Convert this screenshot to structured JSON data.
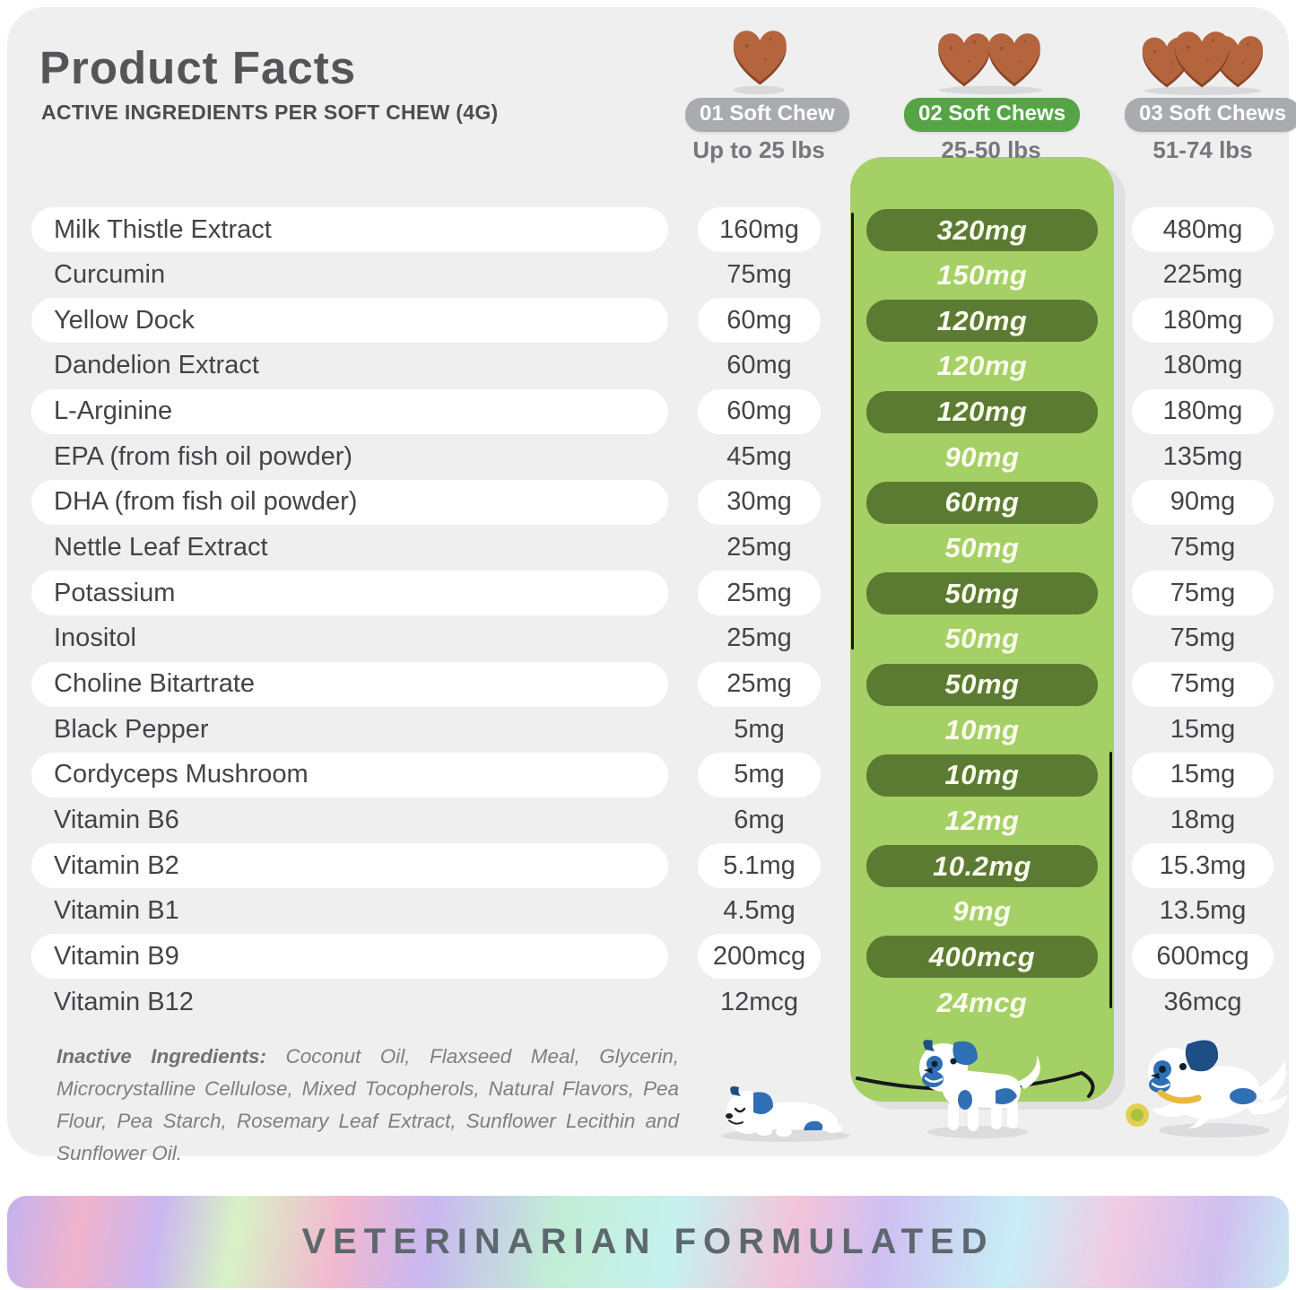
{
  "header": {
    "title": "Product Facts",
    "subtitle": "ACTIVE INGREDIENTS PER SOFT CHEW (4G)"
  },
  "dose_columns": [
    {
      "badge": "01 Soft Chew",
      "weight": "Up to 25 lbs",
      "chews": 1,
      "highlighted": false
    },
    {
      "badge": "02 Soft Chews",
      "weight": "25-50 lbs",
      "chews": 2,
      "highlighted": true
    },
    {
      "badge": "03 Soft Chews",
      "weight": "51-74 lbs",
      "chews": 3,
      "highlighted": false
    }
  ],
  "ingredients": [
    {
      "name": "Milk Thistle Extract",
      "dose1": "160mg",
      "dose2": "320mg",
      "dose3": "480mg"
    },
    {
      "name": "Curcumin",
      "dose1": "75mg",
      "dose2": "150mg",
      "dose3": "225mg"
    },
    {
      "name": "Yellow Dock",
      "dose1": "60mg",
      "dose2": "120mg",
      "dose3": "180mg"
    },
    {
      "name": "Dandelion Extract",
      "dose1": "60mg",
      "dose2": "120mg",
      "dose3": "180mg"
    },
    {
      "name": "L-Arginine",
      "dose1": "60mg",
      "dose2": "120mg",
      "dose3": "180mg"
    },
    {
      "name": "EPA (from fish oil powder)",
      "dose1": "45mg",
      "dose2": "90mg",
      "dose3": "135mg"
    },
    {
      "name": "DHA (from fish oil powder)",
      "dose1": "30mg",
      "dose2": "60mg",
      "dose3": "90mg"
    },
    {
      "name": "Nettle Leaf Extract",
      "dose1": "25mg",
      "dose2": "50mg",
      "dose3": "75mg"
    },
    {
      "name": "Potassium",
      "dose1": "25mg",
      "dose2": "50mg",
      "dose3": "75mg"
    },
    {
      "name": "Inositol",
      "dose1": "25mg",
      "dose2": "50mg",
      "dose3": "75mg"
    },
    {
      "name": "Choline Bitartrate",
      "dose1": "25mg",
      "dose2": "50mg",
      "dose3": "75mg"
    },
    {
      "name": "Black Pepper",
      "dose1": "5mg",
      "dose2": "10mg",
      "dose3": "15mg"
    },
    {
      "name": "Cordyceps Mushroom",
      "dose1": "5mg",
      "dose2": "10mg",
      "dose3": "15mg"
    },
    {
      "name": "Vitamin B6",
      "dose1": "6mg",
      "dose2": "12mg",
      "dose3": "18mg"
    },
    {
      "name": "Vitamin B2",
      "dose1": "5.1mg",
      "dose2": "10.2mg",
      "dose3": "15.3mg"
    },
    {
      "name": "Vitamin B1",
      "dose1": "4.5mg",
      "dose2": "9mg",
      "dose3": "13.5mg"
    },
    {
      "name": "Vitamin B9",
      "dose1": "200mcg",
      "dose2": "400mcg",
      "dose3": "600mcg"
    },
    {
      "name": "Vitamin B12",
      "dose1": "12mcg",
      "dose2": "24mcg",
      "dose3": "36mcg"
    }
  ],
  "inactive": {
    "label": "Inactive Ingredients:",
    "text": " Coconut Oil, Flaxseed Meal, Glycerin, Microcrystalline Cellulose, Mixed Tocopherols, Natural Flavors, Pea Flour, Pea Starch, Rosemary Leaf Extract, Sunflower Lecithin and Sunflower Oil."
  },
  "footer": {
    "banner": "VETERINARIAN FORMULATED"
  },
  "colors": {
    "card_bg": "#efeff0",
    "badge_gray": "#a9abae",
    "badge_green": "#55a546",
    "band_green": "#a5d065",
    "pill_dark_green": "#5b7b33",
    "chew_brown": "#b4653e",
    "chew_dark": "#8a4527",
    "dog_blue": "#2f6fb5",
    "dog_navy": "#1d4e86",
    "text_dark": "#434447",
    "text_gray": "#76777a",
    "banner_text": "#5c686e"
  }
}
